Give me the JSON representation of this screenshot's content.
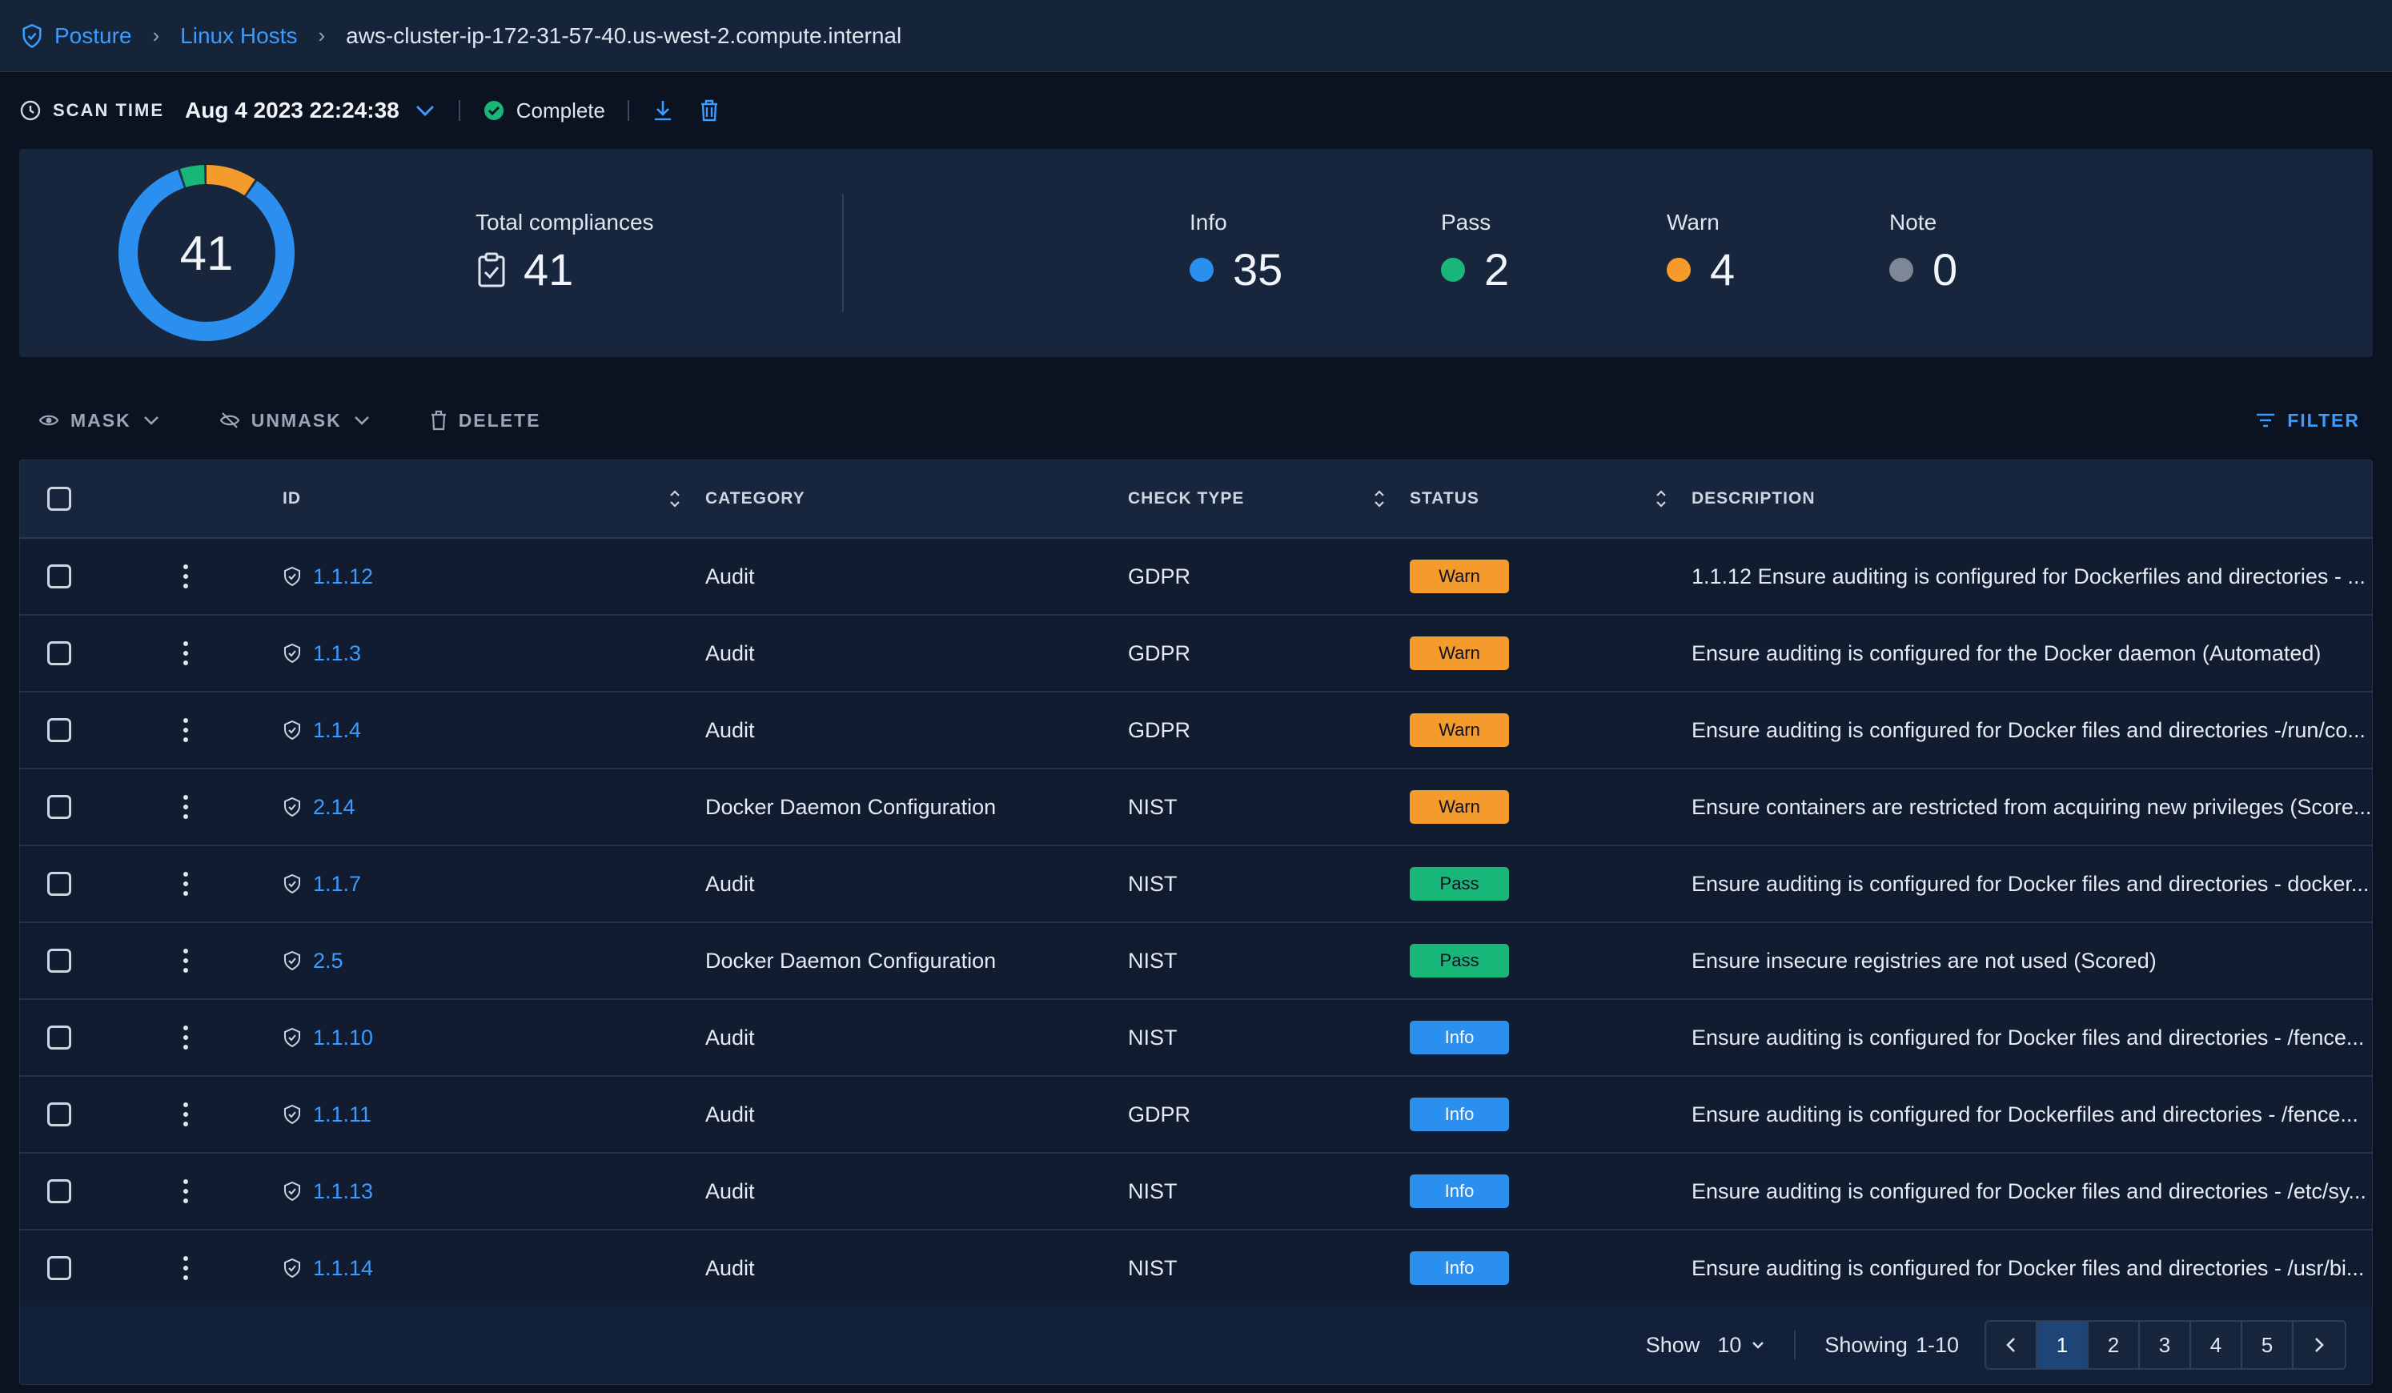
{
  "breadcrumb": {
    "items": [
      "Posture",
      "Linux Hosts"
    ],
    "current": "aws-cluster-ip-172-31-57-40.us-west-2.compute.internal"
  },
  "scan": {
    "label": "SCAN TIME",
    "time": "Aug 4 2023 22:24:38",
    "status": "Complete"
  },
  "summary": {
    "donut_total": "41",
    "total_label": "Total compliances",
    "total_value": "41",
    "stats": [
      {
        "label": "Info",
        "value": "35",
        "color": "#2b8ff0"
      },
      {
        "label": "Pass",
        "value": "2",
        "color": "#19b67a"
      },
      {
        "label": "Warn",
        "value": "4",
        "color": "#f59b2b"
      },
      {
        "label": "Note",
        "value": "0",
        "color": "#7d8796"
      }
    ]
  },
  "actions": {
    "mask": "MASK",
    "unmask": "UNMASK",
    "delete": "DELETE",
    "filter": "FILTER"
  },
  "table": {
    "headers": {
      "id": "ID",
      "category": "CATEGORY",
      "check_type": "CHECK TYPE",
      "status": "STATUS",
      "description": "DESCRIPTION"
    },
    "rows": [
      {
        "id": "1.1.12",
        "category": "Audit",
        "check_type": "GDPR",
        "status": "Warn",
        "description": "1.1.12 Ensure auditing is configured for Dockerfiles and directories - ..."
      },
      {
        "id": "1.1.3",
        "category": "Audit",
        "check_type": "GDPR",
        "status": "Warn",
        "description": "Ensure auditing is configured for the Docker daemon (Automated)"
      },
      {
        "id": "1.1.4",
        "category": "Audit",
        "check_type": "GDPR",
        "status": "Warn",
        "description": "Ensure auditing is configured for Docker files and directories -/run/co..."
      },
      {
        "id": "2.14",
        "category": "Docker Daemon Configuration",
        "check_type": "NIST",
        "status": "Warn",
        "description": "Ensure containers are restricted from acquiring new privileges (Score..."
      },
      {
        "id": "1.1.7",
        "category": "Audit",
        "check_type": "NIST",
        "status": "Pass",
        "description": "Ensure auditing is configured for Docker files and directories - docker..."
      },
      {
        "id": "2.5",
        "category": "Docker Daemon Configuration",
        "check_type": "NIST",
        "status": "Pass",
        "description": "Ensure insecure registries are not used (Scored)"
      },
      {
        "id": "1.1.10",
        "category": "Audit",
        "check_type": "NIST",
        "status": "Info",
        "description": "Ensure auditing is configured for Docker files and directories - /fence..."
      },
      {
        "id": "1.1.11",
        "category": "Audit",
        "check_type": "GDPR",
        "status": "Info",
        "description": "Ensure auditing is configured for Dockerfiles and directories - /fence..."
      },
      {
        "id": "1.1.13",
        "category": "Audit",
        "check_type": "NIST",
        "status": "Info",
        "description": "Ensure auditing is configured for Docker files and directories - /etc/sy..."
      },
      {
        "id": "1.1.14",
        "category": "Audit",
        "check_type": "NIST",
        "status": "Info",
        "description": "Ensure auditing is configured for Docker files and directories - /usr/bi..."
      }
    ]
  },
  "status_colors": {
    "Warn": "#f59b2b",
    "Pass": "#19b67a",
    "Info": "#2b8ff0"
  },
  "pagination": {
    "show_label": "Show",
    "show_value": "10",
    "showing_label": "Showing",
    "showing_range": "1-10",
    "pages": [
      "1",
      "2",
      "3",
      "4",
      "5"
    ],
    "current_page": "1"
  }
}
